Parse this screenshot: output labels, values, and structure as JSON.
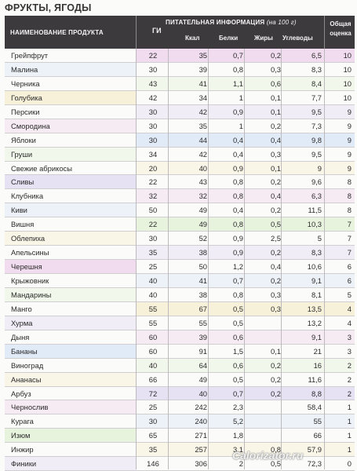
{
  "title": "ФРУКТЫ, ЯГОДЫ",
  "header": {
    "name": "НАИМЕНОВАНИЕ ПРОДУКТА",
    "gi": "ГИ",
    "nutrition": "ПИТАТЕЛЬНАЯ ИНФОРМАЦИЯ",
    "unit": "(на 100 г)",
    "kcal": "Ккал",
    "protein": "Белки",
    "fat": "Жиры",
    "carbs": "Углеводы",
    "score_line1": "Общая",
    "score_line2": "оценка"
  },
  "rows": [
    {
      "name": "Грейпфрут",
      "gi": "22",
      "kcal": "35",
      "protein": "0,7",
      "fat": "0,2",
      "carbs": "6,5",
      "score": "10"
    },
    {
      "name": "Малина",
      "gi": "30",
      "kcal": "39",
      "protein": "0,8",
      "fat": "0,3",
      "carbs": "8,3",
      "score": "10"
    },
    {
      "name": "Черника",
      "gi": "43",
      "kcal": "41",
      "protein": "1,1",
      "fat": "0,6",
      "carbs": "8,4",
      "score": "10"
    },
    {
      "name": "Голубика",
      "gi": "42",
      "kcal": "34",
      "protein": "1",
      "fat": "0,1",
      "carbs": "7,7",
      "score": "10"
    },
    {
      "name": "Персики",
      "gi": "30",
      "kcal": "42",
      "protein": "0,9",
      "fat": "0,1",
      "carbs": "9,5",
      "score": "9"
    },
    {
      "name": "Смородина",
      "gi": "30",
      "kcal": "35",
      "protein": "1",
      "fat": "0,2",
      "carbs": "7,3",
      "score": "9"
    },
    {
      "name": "Яблоки",
      "gi": "30",
      "kcal": "44",
      "protein": "0,4",
      "fat": "0,4",
      "carbs": "9,8",
      "score": "9"
    },
    {
      "name": "Груши",
      "gi": "34",
      "kcal": "42",
      "protein": "0,4",
      "fat": "0,3",
      "carbs": "9,5",
      "score": "9"
    },
    {
      "name": "Свежие абрикосы",
      "gi": "20",
      "kcal": "40",
      "protein": "0,9",
      "fat": "0,1",
      "carbs": "9",
      "score": "9"
    },
    {
      "name": "Сливы",
      "gi": "22",
      "kcal": "43",
      "protein": "0,8",
      "fat": "0,2",
      "carbs": "9,6",
      "score": "8"
    },
    {
      "name": "Клубника",
      "gi": "32",
      "kcal": "32",
      "protein": "0,8",
      "fat": "0,4",
      "carbs": "6,3",
      "score": "8"
    },
    {
      "name": "Киви",
      "gi": "50",
      "kcal": "49",
      "protein": "0,4",
      "fat": "0,2",
      "carbs": "11,5",
      "score": "8"
    },
    {
      "name": "Вишня",
      "gi": "22",
      "kcal": "49",
      "protein": "0,8",
      "fat": "0,5",
      "carbs": "10,3",
      "score": "7"
    },
    {
      "name": "Облепиха",
      "gi": "30",
      "kcal": "52",
      "protein": "0,9",
      "fat": "2,5",
      "carbs": "5",
      "score": "7"
    },
    {
      "name": "Апельсины",
      "gi": "35",
      "kcal": "38",
      "protein": "0,9",
      "fat": "0,2",
      "carbs": "8,3",
      "score": "7"
    },
    {
      "name": "Черешня",
      "gi": "25",
      "kcal": "50",
      "protein": "1,2",
      "fat": "0,4",
      "carbs": "10,6",
      "score": "6"
    },
    {
      "name": "Крыжовник",
      "gi": "40",
      "kcal": "41",
      "protein": "0,7",
      "fat": "0,2",
      "carbs": "9,1",
      "score": "6"
    },
    {
      "name": "Мандарины",
      "gi": "40",
      "kcal": "38",
      "protein": "0,8",
      "fat": "0,3",
      "carbs": "8,1",
      "score": "5"
    },
    {
      "name": "Манго",
      "gi": "55",
      "kcal": "67",
      "protein": "0,5",
      "fat": "0,3",
      "carbs": "13,5",
      "score": "4"
    },
    {
      "name": "Хурма",
      "gi": "55",
      "kcal": "55",
      "protein": "0,5",
      "fat": "",
      "carbs": "13,2",
      "score": "4"
    },
    {
      "name": "Дыня",
      "gi": "60",
      "kcal": "39",
      "protein": "0,6",
      "fat": "",
      "carbs": "9,1",
      "score": "3"
    },
    {
      "name": "Бананы",
      "gi": "60",
      "kcal": "91",
      "protein": "1,5",
      "fat": "0,1",
      "carbs": "21",
      "score": "3"
    },
    {
      "name": "Виноград",
      "gi": "40",
      "kcal": "64",
      "protein": "0,6",
      "fat": "0,2",
      "carbs": "16",
      "score": "2"
    },
    {
      "name": "Ананасы",
      "gi": "66",
      "kcal": "49",
      "protein": "0,5",
      "fat": "0,2",
      "carbs": "11,6",
      "score": "2"
    },
    {
      "name": "Арбуз",
      "gi": "72",
      "kcal": "40",
      "protein": "0,7",
      "fat": "0,2",
      "carbs": "8,8",
      "score": "2"
    },
    {
      "name": "Чернослив",
      "gi": "25",
      "kcal": "242",
      "protein": "2,3",
      "fat": "",
      "carbs": "58,4",
      "score": "1"
    },
    {
      "name": "Курага",
      "gi": "30",
      "kcal": "240",
      "protein": "5,2",
      "fat": "",
      "carbs": "55",
      "score": "1"
    },
    {
      "name": "Изюм",
      "gi": "65",
      "kcal": "271",
      "protein": "1,8",
      "fat": "",
      "carbs": "66",
      "score": "1"
    },
    {
      "name": "Инжир",
      "gi": "35",
      "kcal": "257",
      "protein": "3,1",
      "fat": "0,8",
      "carbs": "57,9",
      "score": "1"
    },
    {
      "name": "Финики",
      "gi": "146",
      "kcal": "306",
      "protein": "2",
      "fat": "0,5",
      "carbs": "72,3",
      "score": "0"
    }
  ],
  "watermark": "Calorizator.ru",
  "colors": {
    "header_bg": "#3d3a3d",
    "tints": [
      "#efd6ec",
      "#dce6f6",
      "#e4f1d8",
      "#f6efd2",
      "#e3dcf2"
    ]
  }
}
